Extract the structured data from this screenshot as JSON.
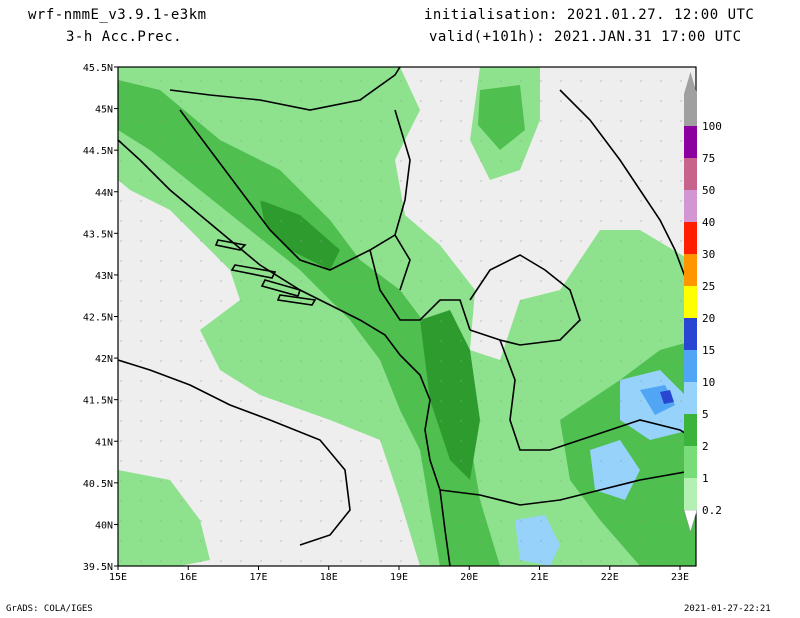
{
  "header": {
    "model": "wrf-nmmE_v3.9.1-e3km",
    "field": "3-h Acc.Prec.",
    "init": "initialisation: 2021.01.27. 12:00 UTC",
    "valid": "valid(+101h): 2021.JAN.31 17:00 UTC"
  },
  "axes": {
    "lon_labels": [
      "15E",
      "16E",
      "17E",
      "18E",
      "19E",
      "20E",
      "21E",
      "22E",
      "23E"
    ],
    "lat_labels": [
      "45.5N",
      "45N",
      "44.5N",
      "44N",
      "43.5N",
      "43N",
      "42.5N",
      "42N",
      "41.5N",
      "41N",
      "40.5N",
      "40N",
      "39.5N"
    ]
  },
  "colorbar": {
    "levels": [
      "0.2",
      "1",
      "2",
      "5",
      "10",
      "15",
      "20",
      "25",
      "30",
      "40",
      "50",
      "75",
      "100"
    ],
    "colors": [
      "#ffffff",
      "#b4f0b4",
      "#78dc78",
      "#3cb43c",
      "#96d2fa",
      "#50a5f5",
      "#2846d2",
      "#ffff00",
      "#ff9600",
      "#ff1e00",
      "#d296d2",
      "#c8648c",
      "#8c00a0",
      "#a0a0a0"
    ]
  },
  "footer": {
    "credit": "GrADS: COLA/IGES",
    "timestamp": "2021-01-27-22:21"
  }
}
